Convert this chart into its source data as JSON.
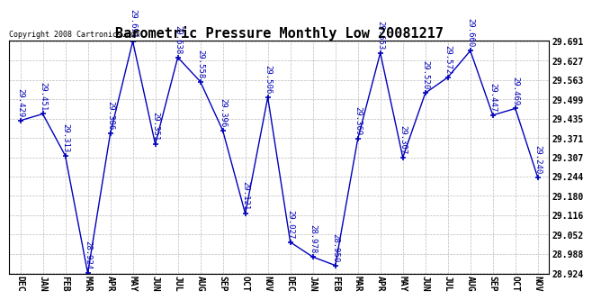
{
  "title": "Barometric Pressure Monthly Low 20081217",
  "copyright": "Copyright 2008 Cartronics.com",
  "months": [
    "DEC",
    "JAN",
    "FEB",
    "MAR",
    "APR",
    "MAY",
    "JUN",
    "JUL",
    "AUG",
    "SEP",
    "OCT",
    "NOV",
    "DEC",
    "JAN",
    "FEB",
    "MAR",
    "APR",
    "MAY",
    "JUN",
    "JUL",
    "AUG",
    "SEP",
    "OCT",
    "NOV"
  ],
  "values": [
    29.429,
    29.451,
    29.313,
    28.924,
    29.386,
    29.691,
    29.351,
    29.638,
    29.558,
    29.396,
    29.121,
    29.506,
    29.027,
    28.978,
    28.95,
    29.369,
    29.653,
    29.307,
    29.52,
    29.572,
    29.66,
    29.447,
    29.469,
    29.24
  ],
  "ylim_min": 28.924,
  "ylim_max": 29.691,
  "yticks": [
    28.924,
    28.988,
    29.052,
    29.116,
    29.18,
    29.244,
    29.307,
    29.371,
    29.435,
    29.499,
    29.563,
    29.627,
    29.691
  ],
  "line_color": "#0000bb",
  "grid_color": "#bbbbbb",
  "bg_color": "#ffffff",
  "title_fontsize": 11,
  "label_fontsize": 6.5,
  "tick_fontsize": 7,
  "copyright_fontsize": 6
}
